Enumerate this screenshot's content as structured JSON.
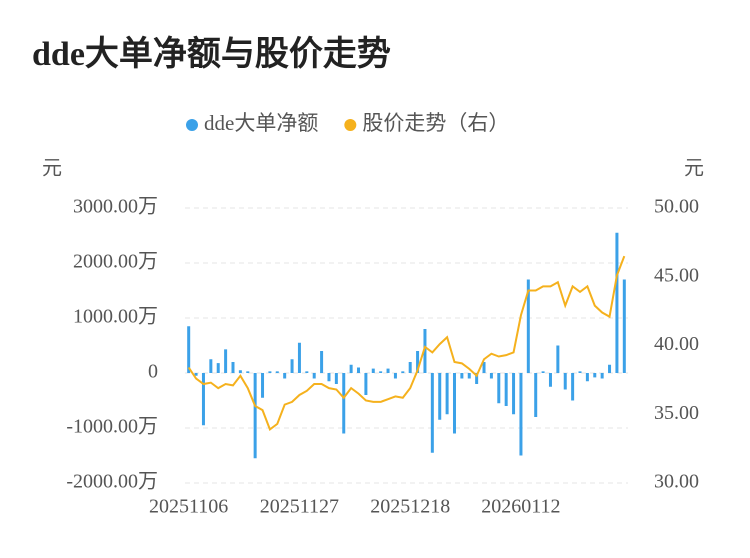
{
  "chart_data": {
    "type": "bar-line",
    "title": "dde大单净额与股价走势",
    "y_label": "元",
    "y2_label": "元",
    "legend": "top",
    "grid": true,
    "categories": [
      "20251106",
      null,
      null,
      null,
      null,
      null,
      null,
      null,
      null,
      null,
      null,
      null,
      null,
      null,
      null,
      "20251127",
      null,
      null,
      null,
      null,
      null,
      null,
      null,
      null,
      null,
      null,
      null,
      null,
      null,
      null,
      "20251218",
      null,
      null,
      null,
      null,
      null,
      null,
      null,
      null,
      null,
      null,
      null,
      null,
      null,
      null,
      "20260112",
      null,
      null,
      null,
      null,
      null,
      null,
      null,
      null,
      null,
      null,
      null,
      null,
      null,
      null
    ],
    "series": [
      {
        "name": "dde大单净额",
        "type": "bar",
        "color": "#3ba1e8",
        "axis": "y",
        "values": [
          850,
          -50,
          -950,
          250,
          180,
          430,
          200,
          50,
          30,
          -1550,
          -450,
          30,
          30,
          -100,
          250,
          550,
          30,
          -100,
          400,
          -150,
          -200,
          -1100,
          150,
          100,
          -400,
          80,
          30,
          80,
          -100,
          30,
          200,
          400,
          800,
          -1450,
          -850,
          -750,
          -1100,
          -100,
          -100,
          -200,
          200,
          -100,
          -550,
          -600,
          -750,
          -1500,
          1700,
          -800,
          30,
          -250,
          500,
          -300,
          -500,
          30,
          -150,
          -80,
          -100,
          150,
          2550,
          1700
        ]
      },
      {
        "name": "股价走势（右）",
        "type": "line",
        "color": "#f5b11d",
        "axis": "y2",
        "values": [
          38.4,
          37.6,
          37.2,
          37.3,
          36.9,
          37.2,
          37.1,
          37.8,
          36.9,
          35.6,
          35.3,
          33.9,
          34.3,
          35.7,
          35.9,
          36.4,
          36.7,
          37.2,
          37.2,
          36.9,
          36.8,
          36.2,
          36.9,
          36.5,
          36.0,
          35.9,
          35.9,
          36.1,
          36.3,
          36.2,
          36.9,
          38.2,
          39.9,
          39.5,
          40.1,
          40.6,
          38.8,
          38.7,
          38.3,
          37.8,
          39.0,
          39.4,
          39.2,
          39.3,
          39.5,
          42.2,
          44.0,
          44.0,
          44.3,
          44.3,
          44.6,
          42.9,
          44.3,
          43.9,
          44.3,
          42.9,
          42.4,
          42.1,
          45.1,
          46.5
        ]
      }
    ],
    "ylim": [
      -2000,
      3000
    ],
    "yticks": [
      {
        "value": -2000,
        "label": "-2000.00万"
      },
      {
        "value": -1000,
        "label": "-1000.00万"
      },
      0,
      {
        "value": 1000,
        "label": "1000.00万"
      },
      {
        "value": 2000,
        "label": "2000.00万"
      },
      {
        "value": 3000,
        "label": "3000.00万"
      }
    ],
    "y2lim": [
      30,
      50
    ],
    "y2ticks": [
      {
        "value": 30,
        "label": "30.00"
      },
      {
        "value": 35,
        "label": "35.00"
      },
      {
        "value": 40,
        "label": "40.00"
      },
      {
        "value": 45,
        "label": "45.00"
      },
      {
        "value": 50,
        "label": "50.00"
      }
    ]
  }
}
